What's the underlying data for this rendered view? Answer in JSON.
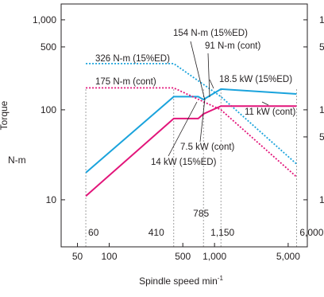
{
  "chart_data": {
    "type": "line",
    "y_scale": "log",
    "x_scale": "log",
    "ylabel": "Torque",
    "y_unit": "N-m",
    "xlabel": "Spindle speed min",
    "xlabel_sup": "-1",
    "ylim": [
      3,
      1500
    ],
    "xlim": [
      35,
      7600
    ],
    "y_ticks": [
      {
        "value": 1000,
        "label": "1,000"
      },
      {
        "value": 500,
        "label": "500"
      },
      {
        "value": 100,
        "label": "100"
      },
      {
        "value": 10,
        "label": "10"
      }
    ],
    "x_ticks": [
      {
        "value": 50,
        "label": "50"
      },
      {
        "value": 100,
        "label": "100"
      },
      {
        "value": 500,
        "label": "500"
      },
      {
        "value": 1000,
        "label": "1,000"
      },
      {
        "value": 5000,
        "label": "5,000"
      }
    ],
    "right_axis_labels": [
      "1",
      "5",
      "1",
      "5",
      "1"
    ],
    "speed_markers": [
      {
        "value": 60,
        "label": "60",
        "row": 2
      },
      {
        "value": 410,
        "label": "410",
        "row": 2
      },
      {
        "value": 785,
        "label": "785",
        "row": 1
      },
      {
        "value": 1150,
        "label": "1,150",
        "row": 2
      },
      {
        "value": 6000,
        "label": "6,000",
        "row": 2
      }
    ],
    "series": [
      {
        "color": "#1aa3dc",
        "style": "solid",
        "x": [
          60,
          410,
          700,
          785,
          1150,
          6000
        ],
        "y": [
          20,
          140,
          140,
          130,
          170,
          150
        ]
      },
      {
        "color": "#1aa3dc",
        "style": "dotted",
        "x": [
          60,
          410,
          1150,
          6000
        ],
        "y": [
          326,
          326,
          140,
          25
        ]
      },
      {
        "color": "#e2157a",
        "style": "solid",
        "x": [
          60,
          410,
          700,
          785,
          1150,
          6000
        ],
        "y": [
          11,
          80,
          80,
          90,
          110,
          110
        ]
      },
      {
        "color": "#e2157a",
        "style": "dotted",
        "x": [
          60,
          410,
          1150,
          6000
        ],
        "y": [
          175,
          175,
          100,
          18
        ]
      }
    ],
    "annotations": [
      {
        "text": "154 N-m (15%ED)"
      },
      {
        "text": "91 N-m (cont)"
      },
      {
        "text": "326 N-m (15%ED)"
      },
      {
        "text": "175 N-m (cont)"
      },
      {
        "text": "18.5 kW (15%ED)"
      },
      {
        "text": "11 kW (cont)"
      },
      {
        "text": "7.5 kW (cont)"
      },
      {
        "text": "14 kW (15%ED)"
      }
    ]
  }
}
